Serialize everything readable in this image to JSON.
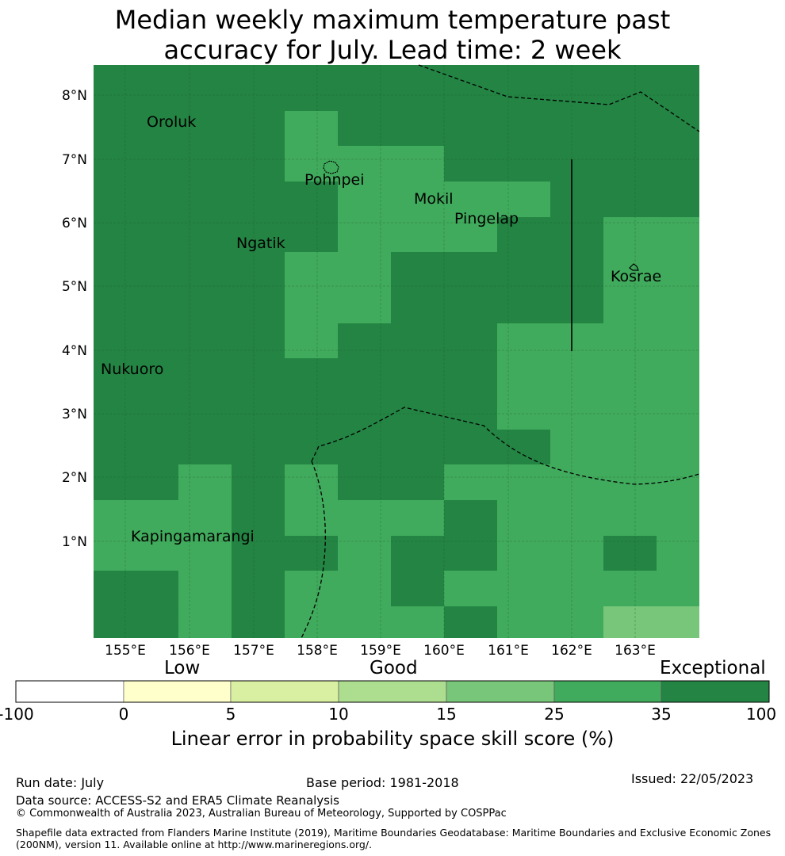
{
  "title_line1": "Median weekly maximum temperature past",
  "title_line2": "accuracy for July. Lead time: 2 week",
  "map": {
    "lon_ticks": [
      "155°E",
      "156°E",
      "157°E",
      "158°E",
      "159°E",
      "160°E",
      "161°E",
      "162°E",
      "163°E"
    ],
    "lat_ticks": [
      "8°N",
      "7°N",
      "6°N",
      "5°N",
      "4°N",
      "3°N",
      "2°N",
      "1°N"
    ],
    "places": [
      "Oroluk",
      "Pohnpei",
      "Mokil",
      "Pingelap",
      "Ngatik",
      "Kosrae",
      "Nukuoro",
      "Kapingamarangi"
    ],
    "colors": {
      "c25_35": "#41ab5d",
      "c35_100": "#238443",
      "c15_25": "#78c679"
    }
  },
  "colorbar": {
    "categories": [
      "Low",
      "Good",
      "Exceptional"
    ],
    "ticks": [
      "-100",
      "0",
      "5",
      "10",
      "15",
      "25",
      "35",
      "100"
    ],
    "colors": [
      "#ffffff",
      "#ffffcc",
      "#d9f0a3",
      "#addd8e",
      "#78c679",
      "#41ab5d",
      "#238443"
    ],
    "label": "Linear error in probability space skill score (%)"
  },
  "footer": {
    "run_date": "Run date: July",
    "base_period": "Base period: 1981-2018",
    "issued": "Issued: 22/05/2023",
    "data_source": "Data source: ACCESS-S2 and ERA5 Climate Reanalysis",
    "copyright": "© Commonwealth of Australia 2023, Australian Bureau of Meteorology, Supported by COSPPac",
    "shapefile_1": "Shapefile data extracted from Flanders Marine Institute (2019), Maritime Boundaries Geodatabase: Maritime Boundaries and Exclusive Economic Zones",
    "shapefile_2": "(200NM), version 11. Available online at http://www.marineregions.org/."
  }
}
